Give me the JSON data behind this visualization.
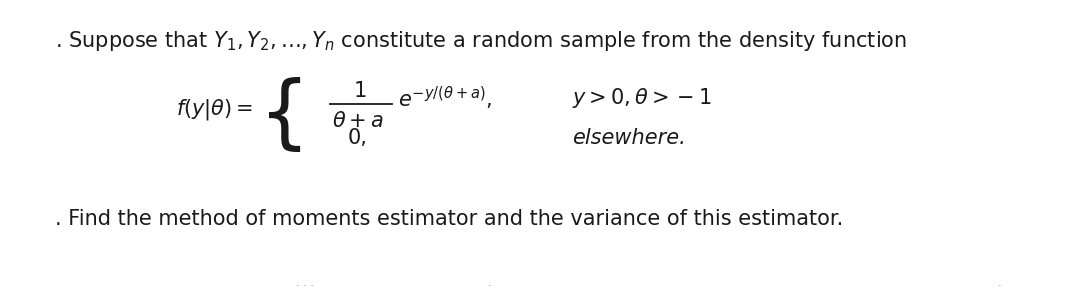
{
  "background_color": "#ffffff",
  "fig_width": 10.8,
  "fig_height": 3.01,
  "dpi": 100,
  "text_color": "#1a1a1a",
  "line1_fontsize": 15.0,
  "formula_fontsize": 15.0,
  "line2_fontsize": 15.0
}
